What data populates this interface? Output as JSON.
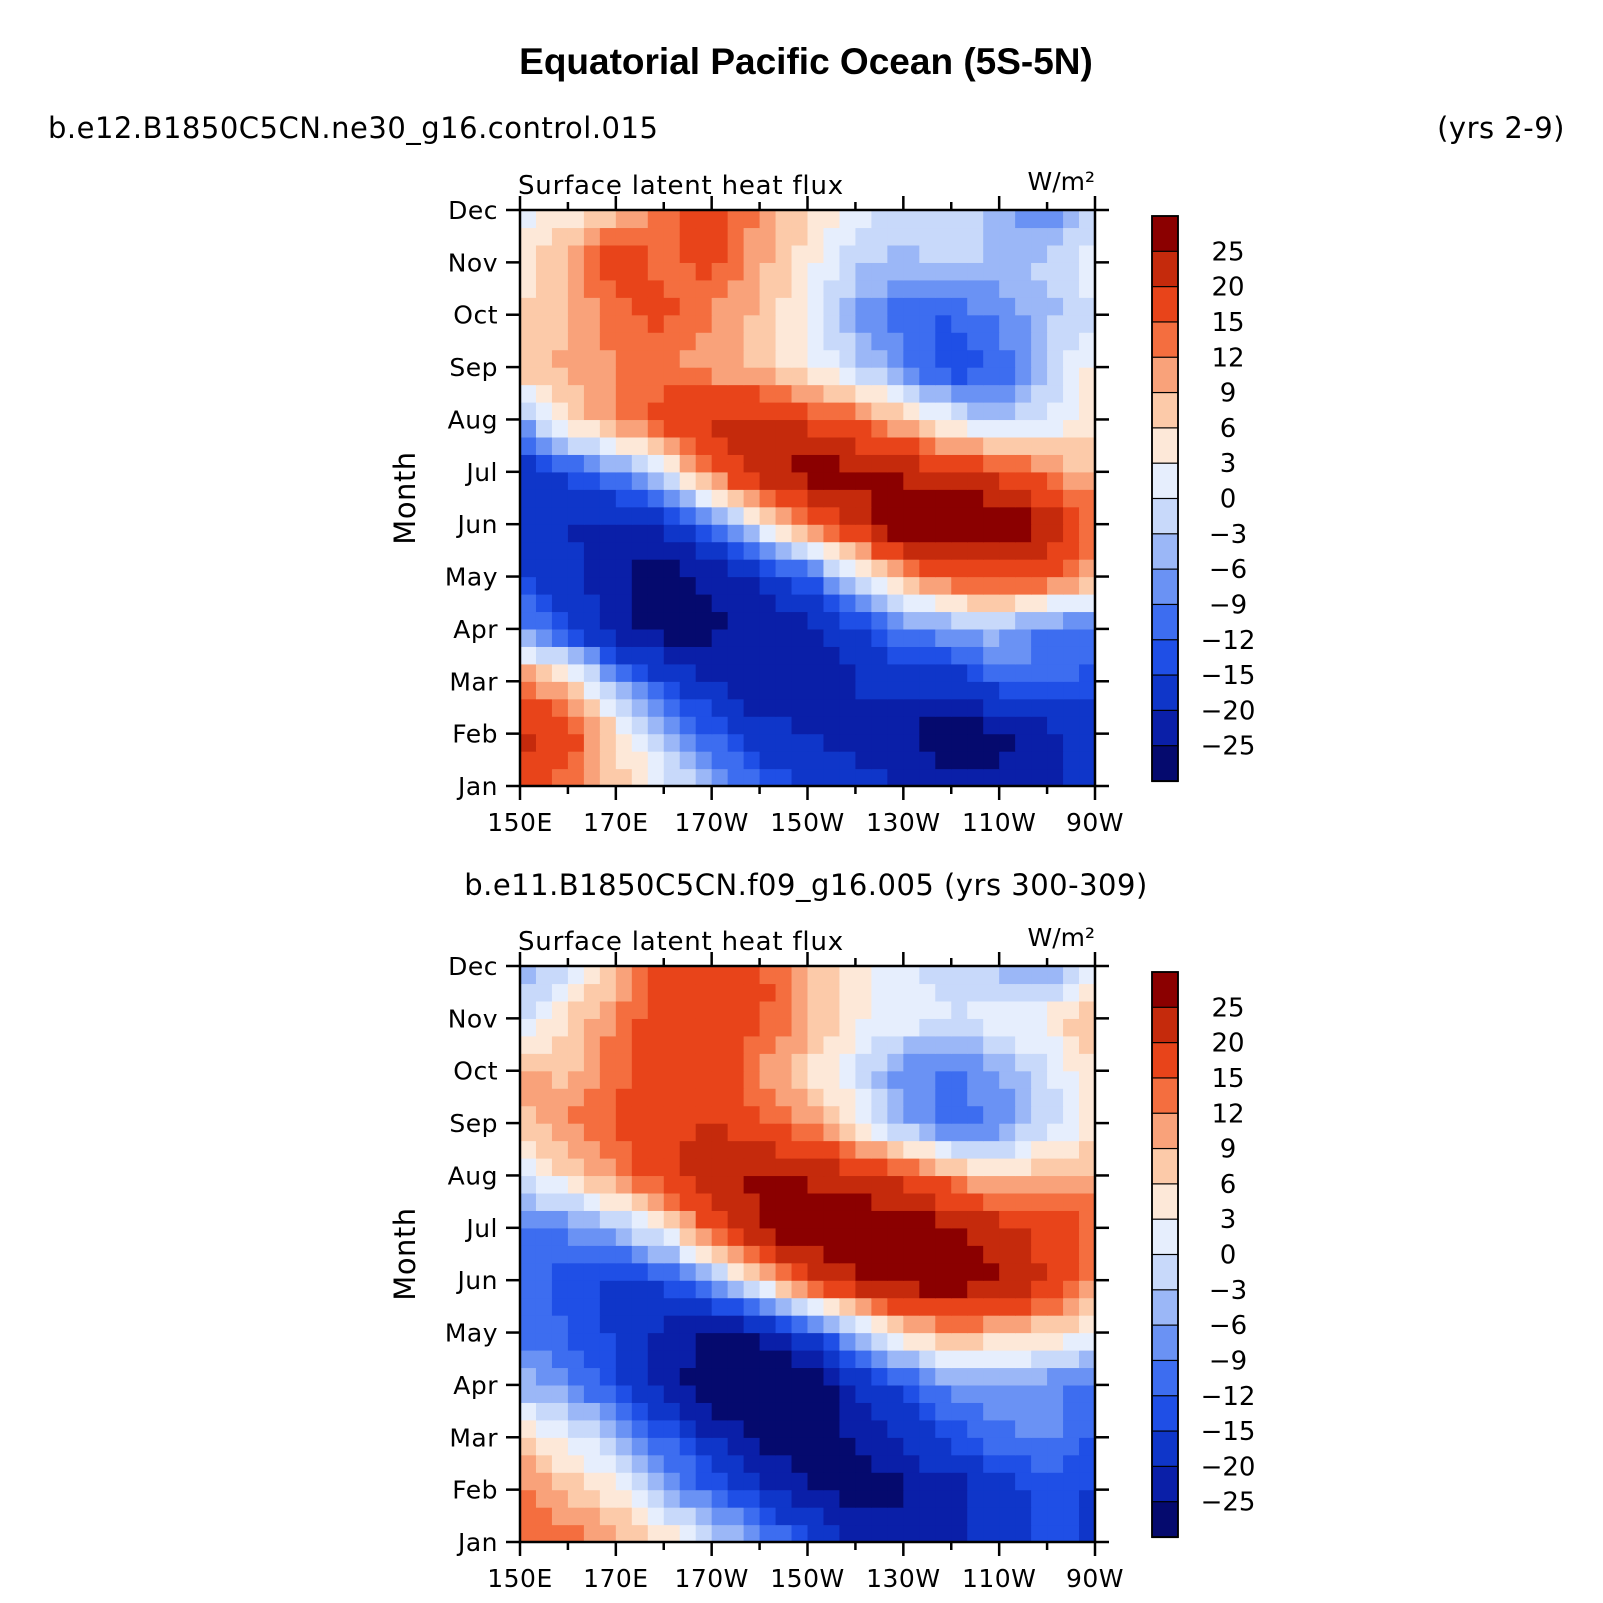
{
  "chart_data": {
    "type": "heatmap",
    "title": "Equatorial Pacific Ocean (5S-5N)",
    "left_header": "b.e12.B1850C5CN.ne30_g16.control.015",
    "right_header": "(yrs 2-9)",
    "panels": [
      {
        "case_label": "",
        "subtitle": "Surface latent heat flux",
        "units": "W/m²",
        "ylabel": "Month",
        "x_ticks": [
          "150E",
          "170E",
          "170W",
          "150W",
          "130W",
          "110W",
          "90W"
        ],
        "y_ticks": [
          "Jan",
          "Feb",
          "Mar",
          "Apr",
          "May",
          "Jun",
          "Jul",
          "Aug",
          "Sep",
          "Oct",
          "Nov",
          "Dec"
        ],
        "longitudes": [
          150,
          160,
          170,
          180,
          190,
          200,
          210,
          220,
          230,
          240,
          250,
          260,
          270
        ],
        "grid": [
          [
            16,
            12,
            8,
            2,
            -6,
            -12,
            -16,
            -18,
            -20,
            -22,
            -24,
            -22,
            -18
          ],
          [
            22,
            18,
            6,
            -4,
            -12,
            -18,
            -20,
            -22,
            -24,
            -30,
            -26,
            -22,
            -18
          ],
          [
            14,
            6,
            -6,
            -14,
            -20,
            -24,
            -24,
            -20,
            -16,
            -18,
            -12,
            -10,
            -14
          ],
          [
            -8,
            -14,
            -22,
            -28,
            -26,
            -24,
            -22,
            -16,
            -10,
            -6,
            -4,
            -10,
            -10
          ],
          [
            -14,
            -18,
            -24,
            -28,
            -24,
            -20,
            -12,
            -2,
            10,
            16,
            18,
            16,
            10
          ],
          [
            -16,
            -20,
            -22,
            -20,
            -10,
            2,
            14,
            22,
            30,
            32,
            30,
            24,
            14
          ],
          [
            -18,
            -14,
            -8,
            0,
            14,
            24,
            28,
            26,
            24,
            20,
            18,
            12,
            8
          ],
          [
            -6,
            6,
            12,
            18,
            22,
            22,
            18,
            14,
            8,
            2,
            -4,
            0,
            6
          ],
          [
            8,
            10,
            12,
            12,
            10,
            8,
            4,
            -2,
            -8,
            -16,
            -12,
            -2,
            4
          ],
          [
            6,
            8,
            14,
            16,
            12,
            8,
            2,
            -6,
            -12,
            -12,
            -8,
            -4,
            0
          ],
          [
            4,
            10,
            18,
            14,
            16,
            10,
            4,
            -2,
            -4,
            -2,
            -4,
            -2,
            2
          ],
          [
            2,
            4,
            8,
            14,
            16,
            12,
            6,
            2,
            -2,
            0,
            -6,
            -8,
            -2
          ]
        ]
      },
      {
        "case_label": "b.e11.B1850C5CN.f09_g16.005 (yrs 300-309)",
        "subtitle": "Surface latent heat flux",
        "units": "W/m²",
        "ylabel": "Month",
        "x_ticks": [
          "150E",
          "170E",
          "170W",
          "150W",
          "130W",
          "110W",
          "90W"
        ],
        "y_ticks": [
          "Jan",
          "Feb",
          "Mar",
          "Apr",
          "May",
          "Jun",
          "Jul",
          "Aug",
          "Sep",
          "Oct",
          "Nov",
          "Dec"
        ],
        "longitudes": [
          150,
          160,
          170,
          180,
          190,
          200,
          210,
          220,
          230,
          240,
          250,
          260,
          270
        ],
        "grid": [
          [
            12,
            14,
            10,
            6,
            0,
            -6,
            -14,
            -20,
            -22,
            -22,
            -18,
            -14,
            -16
          ],
          [
            14,
            8,
            4,
            -4,
            -12,
            -18,
            -24,
            -28,
            -26,
            -22,
            -18,
            -14,
            -16
          ],
          [
            6,
            2,
            -4,
            -12,
            -20,
            -26,
            -30,
            -24,
            -18,
            -14,
            -10,
            -8,
            -12
          ],
          [
            -4,
            -8,
            -14,
            -22,
            -30,
            -32,
            -30,
            -20,
            -14,
            -8,
            -6,
            -8,
            -10
          ],
          [
            -10,
            -12,
            -16,
            -22,
            -26,
            -24,
            -16,
            -4,
            6,
            10,
            8,
            6,
            2
          ],
          [
            -10,
            -14,
            -16,
            -14,
            -6,
            6,
            18,
            24,
            28,
            30,
            26,
            20,
            12
          ],
          [
            -10,
            -8,
            -4,
            4,
            16,
            26,
            30,
            30,
            28,
            26,
            22,
            18,
            14
          ],
          [
            0,
            6,
            12,
            18,
            24,
            26,
            24,
            22,
            18,
            12,
            6,
            10,
            10
          ],
          [
            8,
            12,
            16,
            18,
            20,
            16,
            12,
            4,
            -6,
            -12,
            -8,
            -2,
            4
          ],
          [
            10,
            8,
            14,
            16,
            18,
            12,
            6,
            0,
            -8,
            -10,
            -6,
            0,
            6
          ],
          [
            -2,
            6,
            12,
            18,
            18,
            16,
            10,
            4,
            2,
            0,
            2,
            4,
            10
          ],
          [
            -6,
            0,
            8,
            16,
            18,
            16,
            10,
            4,
            0,
            -2,
            -4,
            -6,
            0
          ]
        ]
      }
    ],
    "colorbar": {
      "levels": [
        -25,
        -20,
        -15,
        -12,
        -9,
        -6,
        -3,
        0,
        3,
        6,
        9,
        12,
        15,
        20,
        25
      ],
      "labels": [
        "25",
        "20",
        "15",
        "12",
        "9",
        "6",
        "3",
        "0",
        "−3",
        "−6",
        "−9",
        "−12",
        "−15",
        "−20",
        "−25"
      ],
      "colors": [
        "#050a6e",
        "#0a1fa8",
        "#0f36c9",
        "#1f4fe6",
        "#3d6df0",
        "#6a92f4",
        "#9bb7f7",
        "#c8d9fa",
        "#e6eefd",
        "#fde8d8",
        "#fccaa9",
        "#f9a27a",
        "#f46e3f",
        "#e8441a",
        "#c52a0c",
        "#8b0000"
      ]
    }
  }
}
